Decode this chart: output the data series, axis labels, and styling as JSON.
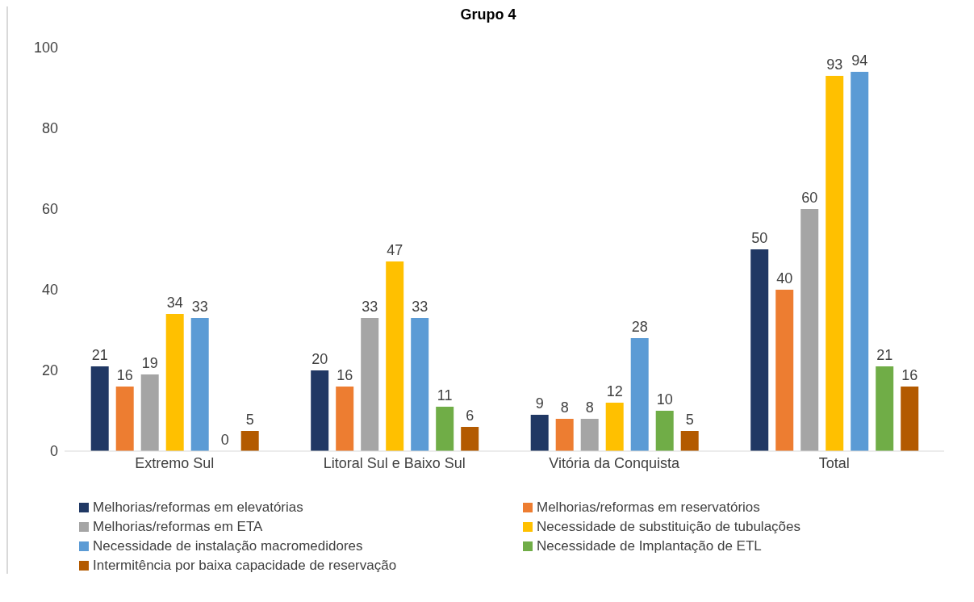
{
  "chart_data": {
    "type": "bar",
    "title": "Grupo 4",
    "categories": [
      "Extremo Sul",
      "Litoral Sul e Baixo Sul",
      "Vitória da Conquista",
      "Total"
    ],
    "series": [
      {
        "name": "Melhorias/reformas em elevatórias",
        "color": "#203864",
        "values": [
          21,
          20,
          9,
          50
        ]
      },
      {
        "name": "Melhorias/reformas em reservatórios",
        "color": "#ed7d31",
        "values": [
          16,
          16,
          8,
          40
        ]
      },
      {
        "name": "Melhorias/reformas em ETA",
        "color": "#a5a5a5",
        "values": [
          19,
          33,
          8,
          60
        ]
      },
      {
        "name": "Necessidade de substituição de tubulações",
        "color": "#ffc000",
        "values": [
          34,
          47,
          12,
          93
        ]
      },
      {
        "name": "Necessidade de instalação macromedidores",
        "color": "#5b9bd5",
        "values": [
          33,
          33,
          28,
          94
        ]
      },
      {
        "name": "Necessidade de Implantação de ETL",
        "color": "#70ad47",
        "values": [
          0,
          11,
          10,
          21
        ]
      },
      {
        "name": "Intermitência por baixa capacidade de reservação",
        "color": "#b35a00",
        "values": [
          5,
          6,
          5,
          16
        ]
      }
    ],
    "ylim": [
      0,
      100
    ],
    "yticks": [
      0,
      20,
      40,
      60,
      80,
      100
    ],
    "grid": false,
    "legend": "bottom",
    "data_labels": true
  }
}
